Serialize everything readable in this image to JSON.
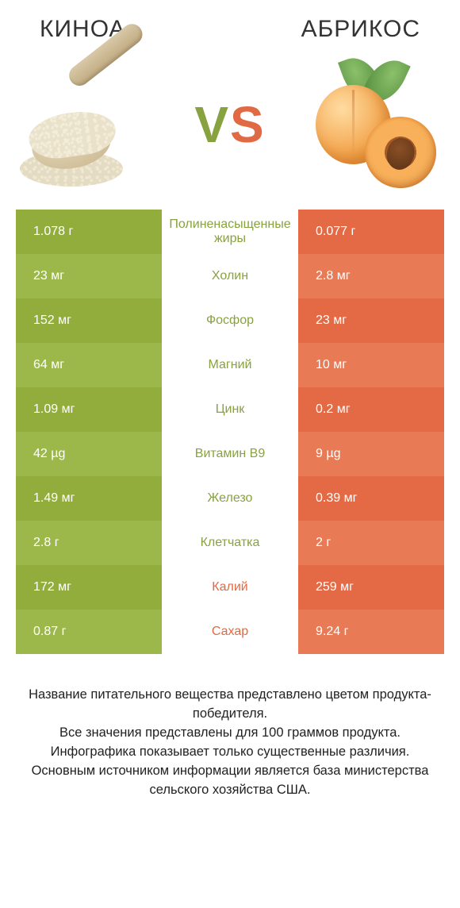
{
  "colors": {
    "left_a": "#93ad3d",
    "left_b": "#9cb84a",
    "right_a": "#e46a45",
    "right_b": "#e87a55",
    "mid_left": "#88a23f",
    "mid_right": "#e06a44",
    "text": "#333333"
  },
  "header": {
    "left_title": "Киноа",
    "right_title": "Абрикос",
    "vs_v": "V",
    "vs_s": "S"
  },
  "rows": [
    {
      "left": "1.078 г",
      "label": "Полиненасыщенные жиры",
      "right": "0.077 г",
      "winner": "left"
    },
    {
      "left": "23 мг",
      "label": "Холин",
      "right": "2.8 мг",
      "winner": "left"
    },
    {
      "left": "152 мг",
      "label": "Фосфор",
      "right": "23 мг",
      "winner": "left"
    },
    {
      "left": "64 мг",
      "label": "Магний",
      "right": "10 мг",
      "winner": "left"
    },
    {
      "left": "1.09 мг",
      "label": "Цинк",
      "right": "0.2 мг",
      "winner": "left"
    },
    {
      "left": "42 µg",
      "label": "Витамин B9",
      "right": "9 µg",
      "winner": "left"
    },
    {
      "left": "1.49 мг",
      "label": "Железо",
      "right": "0.39 мг",
      "winner": "left"
    },
    {
      "left": "2.8 г",
      "label": "Клетчатка",
      "right": "2 г",
      "winner": "left"
    },
    {
      "left": "172 мг",
      "label": "Калий",
      "right": "259 мг",
      "winner": "right"
    },
    {
      "left": "0.87 г",
      "label": "Сахар",
      "right": "9.24 г",
      "winner": "right"
    }
  ],
  "footer": {
    "text": "Название питательного вещества представлено цветом продукта-победителя.\nВсе значения представлены для 100 граммов продукта.\nИнфографика показывает только существенные различия.\nОсновным источником информации является база министерства сельского хозяйства США."
  }
}
